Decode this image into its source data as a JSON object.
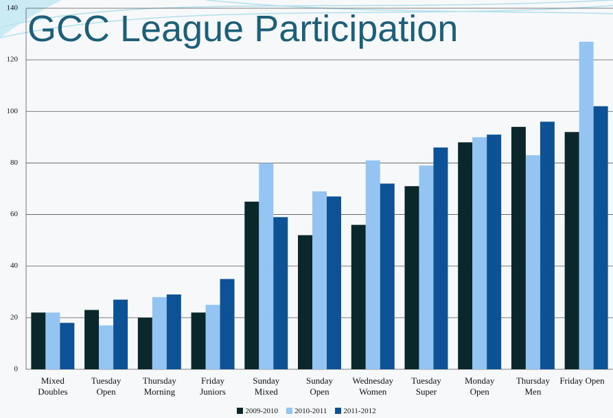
{
  "chart_data": {
    "type": "bar",
    "title": "GCC League Participation",
    "categories": [
      "Mixed Doubles",
      "Tuesday Open",
      "Thursday Morning",
      "Friday Juniors",
      "Sunday Mixed",
      "Sunday Open",
      "Wednesday Women",
      "Tuesday Super",
      "Monday Open",
      "Thursday Men",
      "Friday Open"
    ],
    "series": [
      {
        "name": "2009-2010",
        "color": "#0a272b",
        "values": [
          22,
          23,
          20,
          22,
          65,
          52,
          56,
          71,
          88,
          94,
          92
        ]
      },
      {
        "name": "2010-2011",
        "color": "#94c5f2",
        "values": [
          22,
          17,
          28,
          25,
          80,
          69,
          81,
          79,
          90,
          83,
          127
        ]
      },
      {
        "name": "2011-2012",
        "color": "#0c5294",
        "values": [
          18,
          27,
          29,
          35,
          59,
          67,
          72,
          86,
          91,
          96,
          102
        ]
      }
    ],
    "ylim": [
      0,
      140
    ],
    "yticks": [
      0,
      20,
      40,
      60,
      80,
      100,
      120,
      140
    ],
    "grid": true,
    "legend": "bottom"
  }
}
